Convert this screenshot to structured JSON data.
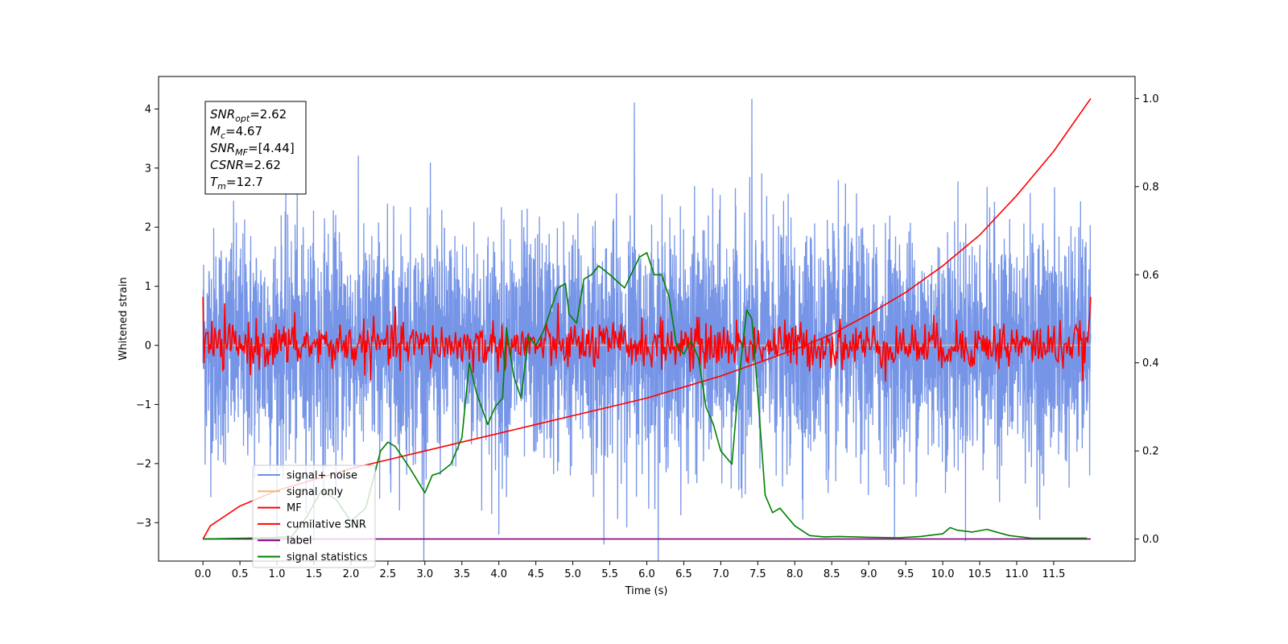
{
  "chart_data": {
    "type": "line",
    "xlabel": "Time (s)",
    "ylabel": "Whitened strain",
    "xlim": [
      -0.6,
      12.6
    ],
    "ylim": [
      -3.65,
      4.55
    ],
    "y2lim": [
      -0.05,
      1.05
    ],
    "xticks": [
      0.0,
      0.5,
      1.0,
      1.5,
      2.0,
      2.5,
      3.0,
      3.5,
      4.0,
      4.5,
      5.0,
      5.5,
      6.0,
      6.5,
      7.0,
      7.5,
      8.0,
      8.5,
      9.0,
      9.5,
      10.0,
      10.5,
      11.0,
      11.5
    ],
    "xtick_labels": [
      "0.0",
      "0.5",
      "1.0",
      "1.5",
      "2.0",
      "2.5",
      "3.0",
      "3.5",
      "4.0",
      "4.5",
      "5.0",
      "5.5",
      "6.0",
      "6.5",
      "7.0",
      "7.5",
      "8.0",
      "8.5",
      "9.0",
      "9.5",
      "10.0",
      "10.5",
      "11.0",
      "11.5"
    ],
    "yticks": [
      -3,
      -2,
      -1,
      0,
      1,
      2,
      3,
      4
    ],
    "ytick_labels": [
      "−3",
      "−2",
      "−1",
      "0",
      "1",
      "2",
      "3",
      "4"
    ],
    "y2ticks": [
      0.0,
      0.2,
      0.4,
      0.6,
      0.8,
      1.0
    ],
    "y2tick_labels": [
      "0.0",
      "0.2",
      "0.4",
      "0.6",
      "0.8",
      "1.0"
    ],
    "grid": false,
    "legend_placement": "lower-left",
    "series": [
      {
        "name": "signal+ noise",
        "axis": "left",
        "color": "#6f8fe6",
        "x_range": [
          0.0,
          12.0
        ],
        "mean": 0.0,
        "band": [
          -1.6,
          1.6
        ],
        "peaks": [
          4.17,
          4.11,
          -3.37,
          -3.2
        ]
      },
      {
        "name": "signal only",
        "axis": "left",
        "color": "#f5b76a",
        "x_range": [
          0.0,
          12.0
        ],
        "value": 0.0
      },
      {
        "name": "MF",
        "axis": "left",
        "color": "#ff0000",
        "x_range": [
          0.0,
          12.0
        ],
        "mean": 0.0,
        "band": [
          -0.45,
          0.45
        ],
        "end_values": [
          0.82,
          0.82
        ]
      },
      {
        "name": "cumilative SNR",
        "axis": "right",
        "color": "#ff0000",
        "x": [
          0.0,
          0.1,
          0.5,
          1.0,
          1.5,
          2.0,
          2.5,
          3.0,
          3.5,
          4.0,
          4.5,
          5.0,
          5.5,
          6.0,
          6.5,
          7.0,
          7.5,
          8.0,
          8.5,
          9.0,
          9.5,
          10.0,
          10.5,
          11.0,
          11.5,
          12.0
        ],
        "y": [
          0.0,
          0.03,
          0.075,
          0.11,
          0.135,
          0.16,
          0.18,
          0.2,
          0.22,
          0.24,
          0.26,
          0.28,
          0.3,
          0.32,
          0.345,
          0.37,
          0.4,
          0.43,
          0.465,
          0.51,
          0.56,
          0.62,
          0.69,
          0.78,
          0.88,
          1.0
        ]
      },
      {
        "name": "label",
        "axis": "right",
        "color": "#800080",
        "x": [
          0.0,
          12.0
        ],
        "y": [
          0.0,
          0.0
        ]
      },
      {
        "name": "signal statistics",
        "axis": "right",
        "color": "#008000",
        "x": [
          0.0,
          0.3,
          0.6,
          0.9,
          1.2,
          1.4,
          1.6,
          1.8,
          2.0,
          2.2,
          2.4,
          2.5,
          2.6,
          2.8,
          3.0,
          3.1,
          3.2,
          3.35,
          3.5,
          3.6,
          3.7,
          3.85,
          3.95,
          4.05,
          4.1,
          4.2,
          4.3,
          4.4,
          4.5,
          4.6,
          4.7,
          4.8,
          4.9,
          4.95,
          5.05,
          5.15,
          5.25,
          5.35,
          5.5,
          5.7,
          5.9,
          6.0,
          6.1,
          6.2,
          6.3,
          6.4,
          6.5,
          6.6,
          6.7,
          6.8,
          6.9,
          7.0,
          7.15,
          7.25,
          7.35,
          7.42,
          7.5,
          7.6,
          7.7,
          7.8,
          7.9,
          8.0,
          8.2,
          8.4,
          8.6,
          9.0,
          9.4,
          9.7,
          10.0,
          10.1,
          10.2,
          10.4,
          10.6,
          10.7,
          10.9,
          11.2,
          11.6,
          11.95
        ],
        "y": [
          0.0,
          0.001,
          0.002,
          0.003,
          0.006,
          0.05,
          0.11,
          0.09,
          0.04,
          0.07,
          0.2,
          0.22,
          0.21,
          0.16,
          0.105,
          0.145,
          0.15,
          0.17,
          0.23,
          0.4,
          0.33,
          0.26,
          0.3,
          0.32,
          0.48,
          0.37,
          0.32,
          0.46,
          0.44,
          0.47,
          0.52,
          0.57,
          0.58,
          0.51,
          0.49,
          0.59,
          0.6,
          0.62,
          0.6,
          0.57,
          0.64,
          0.65,
          0.6,
          0.6,
          0.55,
          0.44,
          0.42,
          0.45,
          0.41,
          0.3,
          0.26,
          0.2,
          0.17,
          0.37,
          0.52,
          0.5,
          0.33,
          0.1,
          0.06,
          0.07,
          0.05,
          0.03,
          0.008,
          0.005,
          0.006,
          0.004,
          0.003,
          0.006,
          0.012,
          0.026,
          0.02,
          0.016,
          0.022,
          0.017,
          0.008,
          0.002,
          0.002,
          0.002
        ]
      }
    ],
    "annotation": [
      {
        "base": "SNR",
        "sub": "opt",
        "value": "=2.62"
      },
      {
        "base": "M",
        "sub": "c",
        "value": "=4.67"
      },
      {
        "base": "SNR",
        "sub": "MF",
        "value": "=[4.44]"
      },
      {
        "base": "CSNR",
        "sub": "",
        "value": "=2.62"
      },
      {
        "base": "T",
        "sub": "m",
        "value": "=12.7"
      }
    ]
  }
}
